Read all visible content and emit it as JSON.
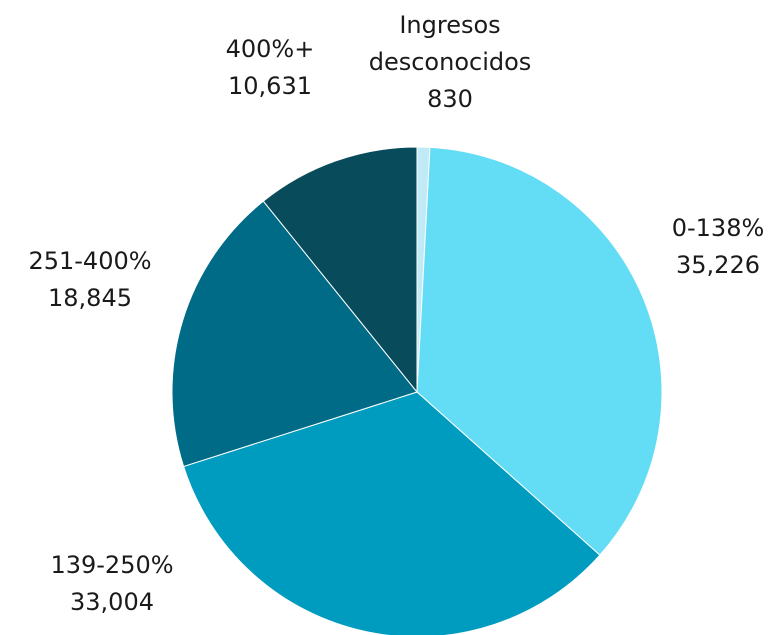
{
  "chart_data": {
    "type": "pie",
    "title": "",
    "legend": "none",
    "slices": [
      {
        "label_lines": [
          "Ingresos",
          "desconocidos"
        ],
        "value": 830,
        "value_label": "830",
        "color": "#bfeaf6"
      },
      {
        "label_lines": [
          "0-138%"
        ],
        "value": 35226,
        "value_label": "35,226",
        "color": "#63dcf5"
      },
      {
        "label_lines": [
          "139-250%"
        ],
        "value": 33004,
        "value_label": "33,004",
        "color": "#009cc0"
      },
      {
        "label_lines": [
          "251-400%"
        ],
        "value": 18845,
        "value_label": "18,845",
        "color": "#006b86"
      },
      {
        "label_lines": [
          "400%+"
        ],
        "value": 10631,
        "value_label": "10,631",
        "color": "#084c5c"
      }
    ]
  }
}
